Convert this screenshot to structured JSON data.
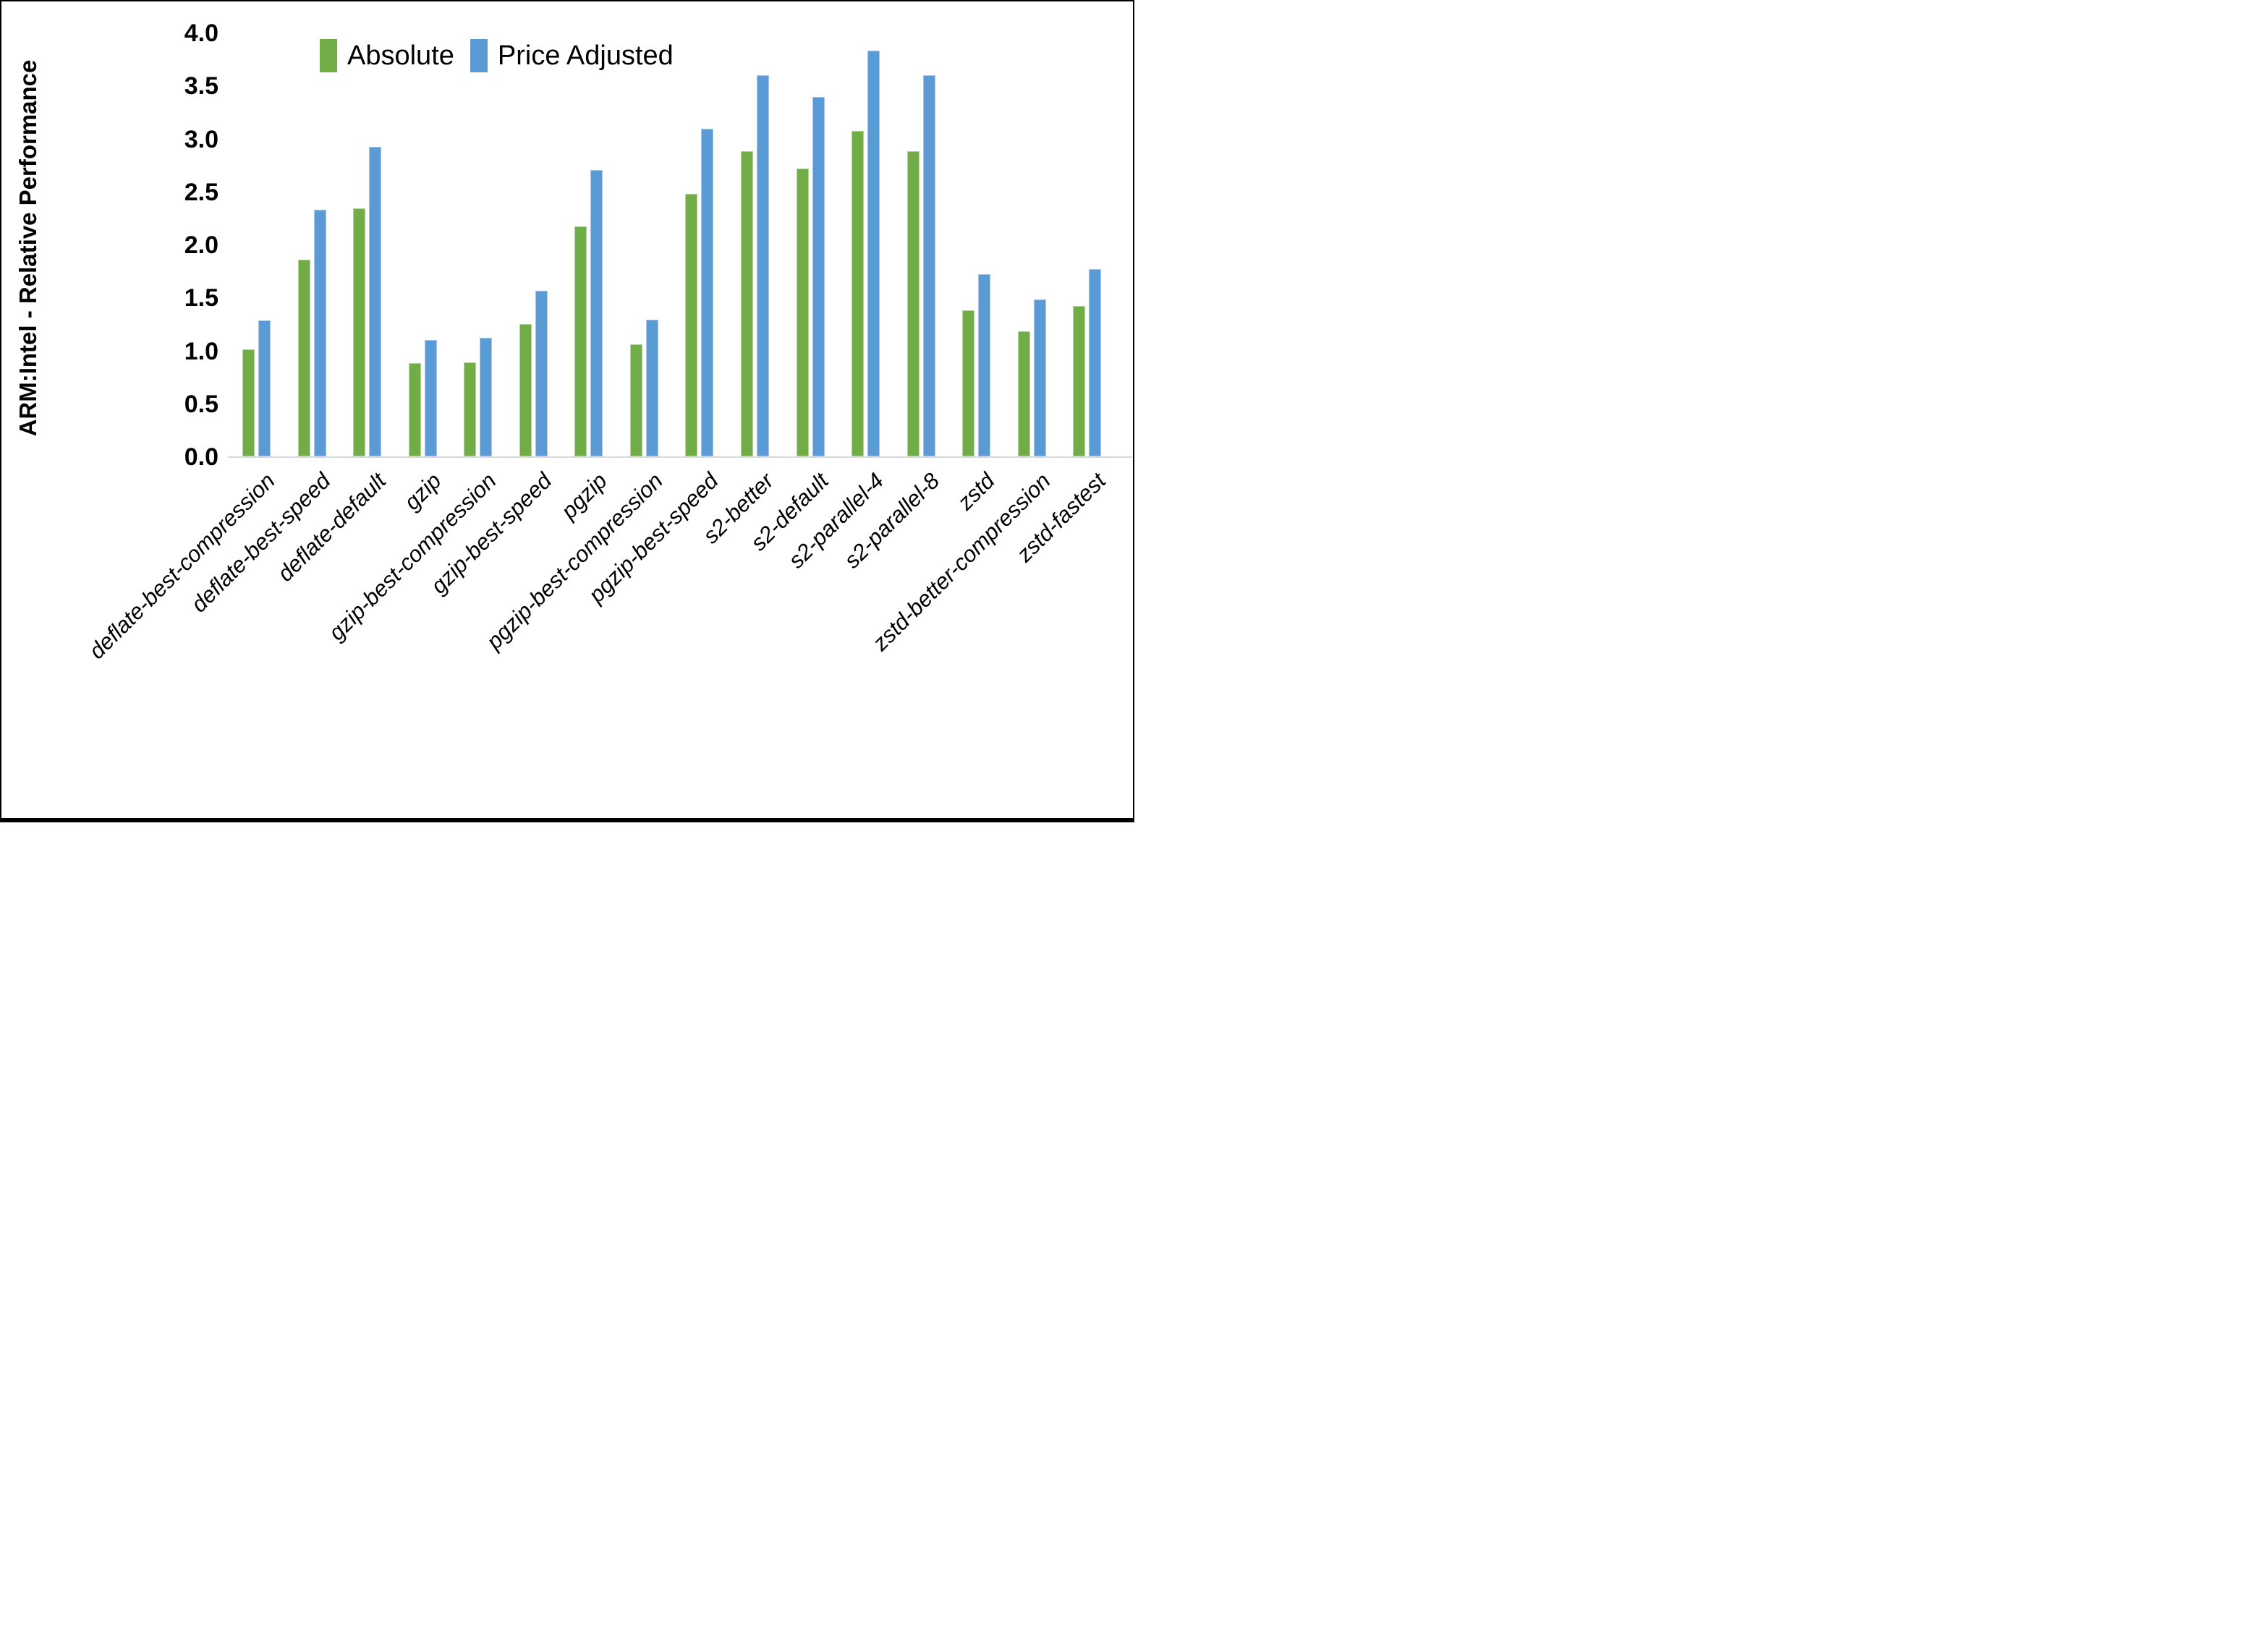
{
  "figure": {
    "background": "#FFFFFF",
    "border_color": "#000000",
    "axis_line_color": "#D9D9D9"
  },
  "chart_data": {
    "type": "bar",
    "title": "",
    "xlabel": "",
    "ylabel": "ARM:Intel - Relative Performance",
    "ylim": [
      0.0,
      4.0
    ],
    "ytick_step": 0.5,
    "ytick_labels": [
      "0.0",
      "0.5",
      "1.0",
      "1.5",
      "2.0",
      "2.5",
      "3.0",
      "3.5",
      "4.0"
    ],
    "grid": false,
    "legend_position": "top-center",
    "categories": [
      "deflate-best-compression",
      "deflate-best-speed",
      "deflate-default",
      "gzip",
      "gzip-best-compression",
      "gzip-best-speed",
      "pgzip",
      "pgzip-best-compression",
      "pgzip-best-speed",
      "s2-better",
      "s2-default",
      "s2-parallel-4",
      "s2-parallel-8",
      "zstd",
      "zstd-better-compression",
      "zstd-fastest"
    ],
    "series": [
      {
        "name": "Absolute",
        "color": "#70AD47",
        "edge_color": "#B5D3A2",
        "values": [
          1.01,
          1.86,
          2.34,
          0.88,
          0.89,
          1.25,
          2.17,
          1.06,
          2.48,
          2.88,
          2.72,
          3.07,
          2.88,
          1.38,
          1.18,
          1.42
        ]
      },
      {
        "name": "Price Adjusted",
        "color": "#5B9BD5",
        "edge_color": "#A9C6E8",
        "values": [
          1.28,
          2.33,
          2.92,
          1.1,
          1.12,
          1.56,
          2.7,
          1.29,
          3.09,
          3.6,
          3.39,
          3.83,
          3.6,
          1.72,
          1.48,
          1.77
        ]
      }
    ]
  }
}
